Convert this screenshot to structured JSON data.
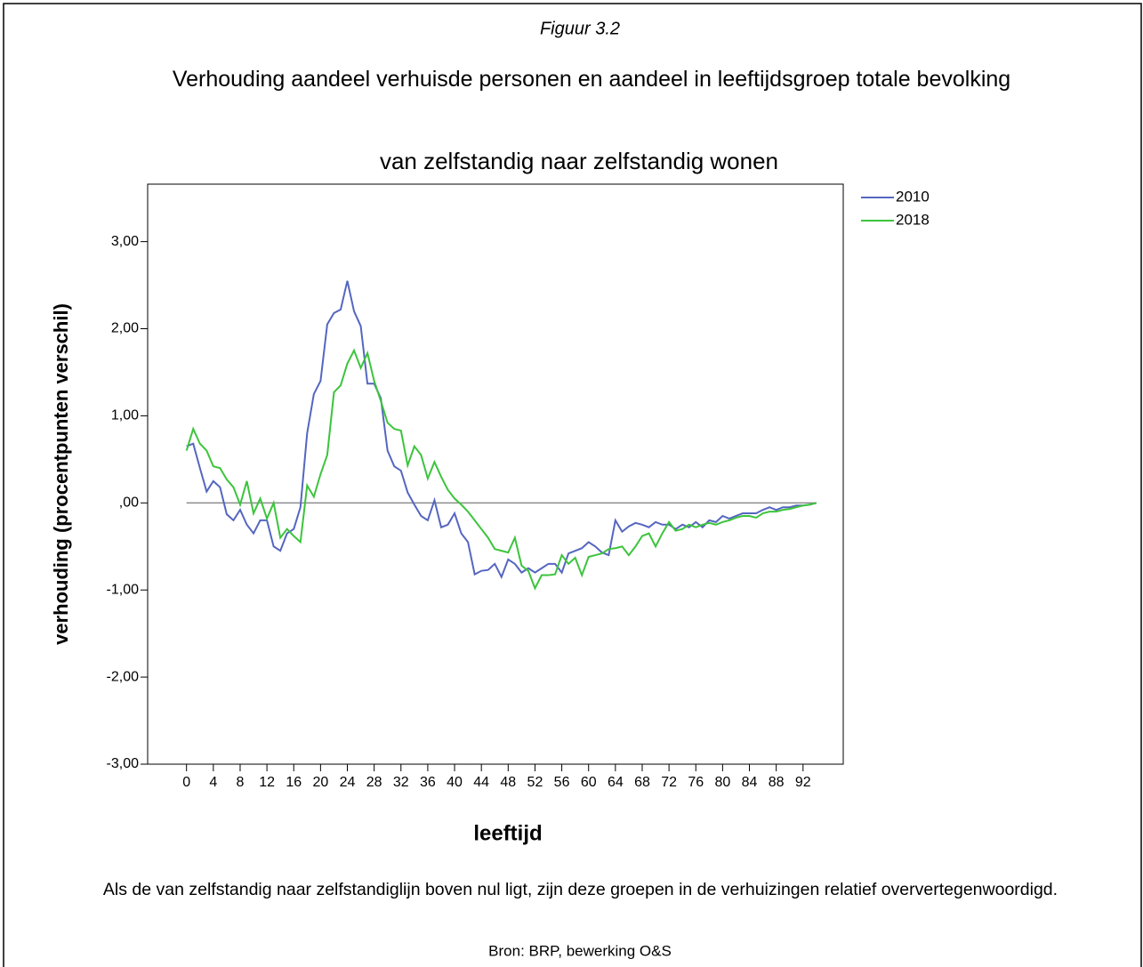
{
  "figure_label": "Figuur 3.2",
  "chart_data": {
    "type": "line",
    "title": "Verhouding aandeel verhuisde personen en aandeel in leeftijdsgroep totale bevolking",
    "subtitle": "van zelfstandig naar zelfstandig wonen",
    "x_label": "leeftijd",
    "y_label": "verhouding (procentpunten verschil)",
    "x": [
      0,
      1,
      2,
      3,
      4,
      5,
      6,
      7,
      8,
      9,
      10,
      11,
      12,
      13,
      14,
      15,
      16,
      17,
      18,
      19,
      20,
      21,
      22,
      23,
      24,
      25,
      26,
      27,
      28,
      29,
      30,
      31,
      32,
      33,
      34,
      35,
      36,
      37,
      38,
      39,
      40,
      41,
      42,
      43,
      44,
      45,
      46,
      47,
      48,
      49,
      50,
      51,
      52,
      53,
      54,
      55,
      56,
      57,
      58,
      59,
      60,
      61,
      62,
      63,
      64,
      65,
      66,
      67,
      68,
      69,
      70,
      71,
      72,
      73,
      74,
      75,
      76,
      77,
      78,
      79,
      80,
      81,
      82,
      83,
      84,
      85,
      86,
      87,
      88,
      89,
      90,
      91,
      92,
      93,
      94
    ],
    "series": [
      {
        "name": "2010",
        "color": "#5566c0",
        "values": [
          0.65,
          0.68,
          0.4,
          0.13,
          0.25,
          0.18,
          -0.13,
          -0.2,
          -0.08,
          -0.25,
          -0.35,
          -0.2,
          -0.2,
          -0.5,
          -0.55,
          -0.35,
          -0.3,
          -0.05,
          0.8,
          1.25,
          1.4,
          2.05,
          2.18,
          2.22,
          2.55,
          2.2,
          2.03,
          1.37,
          1.37,
          1.2,
          0.6,
          0.42,
          0.37,
          0.12,
          -0.02,
          -0.15,
          -0.2,
          0.03,
          -0.28,
          -0.25,
          -0.12,
          -0.35,
          -0.45,
          -0.82,
          -0.78,
          -0.77,
          -0.7,
          -0.85,
          -0.65,
          -0.7,
          -0.8,
          -0.75,
          -0.8,
          -0.75,
          -0.7,
          -0.7,
          -0.8,
          -0.58,
          -0.55,
          -0.52,
          -0.45,
          -0.5,
          -0.57,
          -0.6,
          -0.2,
          -0.33,
          -0.27,
          -0.23,
          -0.25,
          -0.28,
          -0.22,
          -0.25,
          -0.25,
          -0.3,
          -0.25,
          -0.28,
          -0.22,
          -0.28,
          -0.2,
          -0.22,
          -0.15,
          -0.18,
          -0.15,
          -0.12,
          -0.12,
          -0.12,
          -0.08,
          -0.05,
          -0.08,
          -0.05,
          -0.05,
          -0.03,
          -0.03,
          -0.02,
          0
        ]
      },
      {
        "name": "2018",
        "color": "#3cc43c",
        "values": [
          0.6,
          0.85,
          0.68,
          0.6,
          0.42,
          0.4,
          0.27,
          0.18,
          -0.02,
          0.25,
          -0.12,
          0.05,
          -0.18,
          0,
          -0.4,
          -0.3,
          -0.38,
          -0.45,
          0.2,
          0.07,
          0.33,
          0.55,
          1.27,
          1.35,
          1.6,
          1.75,
          1.55,
          1.72,
          1.4,
          1.17,
          0.92,
          0.85,
          0.83,
          0.43,
          0.65,
          0.55,
          0.28,
          0.47,
          0.3,
          0.15,
          0.05,
          -0.02,
          -0.1,
          -0.2,
          -0.3,
          -0.4,
          -0.53,
          -0.55,
          -0.57,
          -0.4,
          -0.72,
          -0.78,
          -0.98,
          -0.83,
          -0.83,
          -0.82,
          -0.6,
          -0.7,
          -0.63,
          -0.83,
          -0.62,
          -0.6,
          -0.58,
          -0.53,
          -0.52,
          -0.5,
          -0.6,
          -0.5,
          -0.38,
          -0.35,
          -0.5,
          -0.35,
          -0.22,
          -0.32,
          -0.3,
          -0.25,
          -0.28,
          -0.25,
          -0.23,
          -0.25,
          -0.22,
          -0.2,
          -0.17,
          -0.15,
          -0.15,
          -0.17,
          -0.12,
          -0.1,
          -0.1,
          -0.08,
          -0.07,
          -0.05,
          -0.03,
          -0.02,
          0
        ]
      }
    ],
    "xlim": [
      -5.8,
      98
    ],
    "ylim": [
      -3,
      3.66
    ],
    "xticks": [
      0,
      4,
      8,
      12,
      16,
      20,
      24,
      28,
      32,
      36,
      40,
      44,
      48,
      52,
      56,
      60,
      64,
      68,
      72,
      76,
      80,
      84,
      88,
      92
    ],
    "yticks": [
      {
        "value": 3,
        "label": "3,00"
      },
      {
        "value": 2,
        "label": "2,00"
      },
      {
        "value": 1,
        "label": "1,00"
      },
      {
        "value": 0,
        "label": ",00"
      },
      {
        "value": -1,
        "label": "-1,00"
      },
      {
        "value": -2,
        "label": "-2,00"
      },
      {
        "value": -3,
        "label": "-3,00"
      }
    ],
    "reference_line": 0,
    "legend": "outside-right-top",
    "grid": false
  },
  "note": "Als de van zelfstandig naar zelfstandiglijn boven nul ligt, zijn deze groepen in de verhuizingen relatief oververtegenwoordigd.",
  "source": "Bron: BRP, bewerking O&S"
}
